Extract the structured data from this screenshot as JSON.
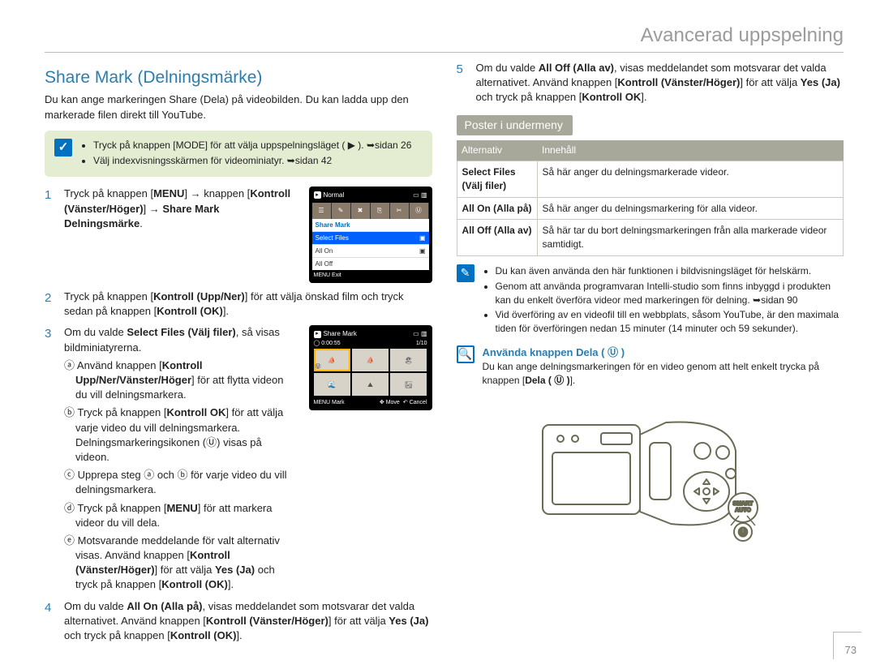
{
  "header": {
    "title": "Avancerad uppspelning"
  },
  "left": {
    "section_title": "Share Mark (Delningsmärke)",
    "intro": "Du kan ange markeringen Share (Dela) på videobilden. Du kan ladda upp den markerade filen direkt till YouTube.",
    "prebox": {
      "icon_glyph": "✓",
      "items": [
        "Tryck på knappen [MODE] för att välja uppspelningsläget ( ▶ ). ➥sidan 26",
        "Välj indexvisningsskärmen för videominiatyr. ➥sidan 42"
      ]
    },
    "steps": {
      "1": {
        "num": "1",
        "html": "Tryck på knappen [<b>MENU</b>] → knappen [<b>Kontroll (Vänster/Höger)</b>] → <b>Share Mark Delningsmärke</b>."
      },
      "2": {
        "num": "2",
        "html": "Tryck på knappen [<b>Kontroll (Upp/Ner)</b>] för att välja önskad film och tryck sedan på knappen [<b>Kontroll (OK)</b>]."
      },
      "3": {
        "num": "3",
        "html": "Om du valde <b>Select Files (Välj filer)</b>, så visas bildminiatyrerna.",
        "subs": [
          "ⓐ Använd knappen [<b>Kontroll Upp/Ner/Vänster/Höger</b>] för att flytta videon du vill delningsmarkera.",
          "ⓑ Tryck på knappen [<b>Kontroll OK</b>] för att välja varje video du vill delningsmarkera. Delningsmarkeringsikonen (Ⓤ) visas på videon.",
          "ⓒ Upprepa steg ⓐ och ⓑ för varje video du vill delningsmarkera.",
          "ⓓ Tryck på knappen [<b>MENU</b>] för att markera videor du vill dela.",
          "ⓔ Motsvarande meddelande för valt alternativ visas. Använd knappen [<b>Kontroll (Vänster/Höger)</b>] för att välja <b>Yes (Ja)</b> och tryck på knappen [<b>Kontroll (OK)</b>]."
        ]
      },
      "4": {
        "num": "4",
        "html": "Om du valde <b>All On (Alla på)</b>, visas meddelandet som motsvarar det valda alternativet. Använd knappen [<b>Kontroll (Vänster/Höger)</b>] för att välja <b>Yes (Ja)</b> och tryck på knappen [<b>Kontroll (OK)</b>]."
      }
    },
    "lcd1": {
      "top_label": "Normal",
      "menu_title": "Share Mark",
      "items": [
        "Select Files",
        "All On",
        "All Off"
      ],
      "selected_index": 0,
      "foot": "MENU  Exit"
    },
    "lcd2": {
      "title": "Share Mark",
      "info_left": "0:00:55",
      "info_right": "1/10",
      "foot_mark": "MENU  Mark",
      "foot_move": "Move",
      "foot_cancel": "Cancel"
    }
  },
  "right": {
    "step5": {
      "num": "5",
      "html": "Om du valde <b>All Off (Alla av)</b>, visas meddelandet som motsvarar det valda alternativet. Använd knappen [<b>Kontroll (Vänster/Höger)</b>] för att välja <b>Yes (Ja)</b> och tryck på knappen [<b>Kontroll OK</b>]."
    },
    "subhead": "Poster i undermeny",
    "table": {
      "head_left": "Alternativ",
      "head_right": "Innehåll",
      "rows": [
        {
          "k": "Select Files\n(Välj filer)",
          "v": "Så här anger du delningsmarkerade videor."
        },
        {
          "k": "All On (Alla på)",
          "v": "Så här anger du delningsmarkering för alla videor."
        },
        {
          "k": "All Off (Alla av)",
          "v": "Så här tar du bort delningsmarkeringen från alla markerade videor samtidigt."
        }
      ]
    },
    "notes": {
      "icon_glyph": "✎",
      "items": [
        "Du kan även använda den här funktionen i bildvisningsläget för helskärm.",
        "Genom att använda programvaran Intelli-studio som finns inbyggd i produkten kan du enkelt överföra videor med markeringen för delning. ➥sidan 90",
        "Vid överföring av en videofil till en webbplats, såsom YouTube, är den maximala tiden för överföringen nedan 15 minuter (14 minuter och 59 sekunder)."
      ]
    },
    "tip": {
      "icon_glyph": "🔍",
      "title": "Använda knappen Dela ( Ⓤ )",
      "html": "Du kan ange delningsmarkeringen för en video genom att helt enkelt trycka på knappen [<b>Dela ( Ⓤ )</b>]."
    }
  },
  "page_number": "73",
  "colors": {
    "accent": "#2b7db0",
    "box_bg": "#e4ecd2",
    "subhead_bg": "#a7a79a",
    "icon_bg": "#0070c0"
  }
}
